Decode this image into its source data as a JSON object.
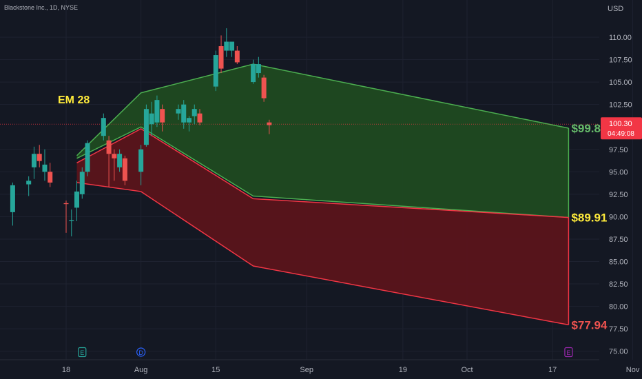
{
  "header": {
    "symbol_title": "Blackstone Inc., 1D, NYSE",
    "currency": "USD"
  },
  "price_tag": {
    "price": "100.30",
    "countdown": "04:49:08",
    "color": "#f23645"
  },
  "colors": {
    "background": "#141823",
    "up": "#26a69a",
    "down": "#ef5350",
    "green_band_fill": "#1f4a21",
    "green_band_line": "#4caf50",
    "red_band_fill": "#5a141b",
    "red_band_line": "#f23645",
    "em_label": "#ffeb3b",
    "upper_label": "#66bb6a",
    "lower_label": "#ef5350",
    "grid": "#1e2230"
  },
  "annotations": {
    "em_label": "EM 28",
    "upper_target": "$99.86",
    "middle_target": "$89.91",
    "lower_target": "$77.94"
  },
  "event_markers": [
    {
      "letter": "E",
      "date": "2022-07-21",
      "icon": "earnings-icon",
      "color": "#26a69a"
    },
    {
      "letter": "D",
      "date": "2022-08-01",
      "icon": "dividend-icon",
      "color": "#2962ff"
    },
    {
      "letter": "E",
      "date": "2022-10-20",
      "icon": "earnings-icon",
      "color": "#9c27b0"
    }
  ],
  "chart_data": {
    "type": "candlestick",
    "title": "",
    "xlabel": "",
    "ylabel": "USD",
    "ylim": [
      75,
      111.5
    ],
    "xlim": [
      "2022-07-08",
      "2022-11-01"
    ],
    "y_ticks": [
      110.0,
      107.5,
      105.0,
      102.5,
      97.5,
      95.0,
      92.5,
      90.0,
      87.5,
      85.0,
      82.5,
      80.0,
      77.5,
      75.0
    ],
    "x_ticks": [
      {
        "label": "18",
        "date": "2022-07-18"
      },
      {
        "label": "Aug",
        "date": "2022-08-01"
      },
      {
        "label": "15",
        "date": "2022-08-15"
      },
      {
        "label": "Sep",
        "date": "2022-09-01"
      },
      {
        "label": "19",
        "date": "2022-09-19"
      },
      {
        "label": "Oct",
        "date": "2022-10-01"
      },
      {
        "label": "17",
        "date": "2022-10-17"
      },
      {
        "label": "Nov",
        "date": "2022-11-01"
      }
    ],
    "last_price": 100.3,
    "candles": [
      {
        "date": "2022-07-08",
        "o": 90.5,
        "h": 93.8,
        "l": 89.0,
        "c": 93.5
      },
      {
        "date": "2022-07-11",
        "o": 93.6,
        "h": 94.5,
        "l": 92.3,
        "c": 94.0
      },
      {
        "date": "2022-07-12",
        "o": 95.5,
        "h": 97.8,
        "l": 94.2,
        "c": 97.0
      },
      {
        "date": "2022-07-13",
        "o": 97.0,
        "h": 98.0,
        "l": 95.5,
        "c": 96.2
      },
      {
        "date": "2022-07-14",
        "o": 95.0,
        "h": 97.5,
        "l": 94.0,
        "c": 95.8
      },
      {
        "date": "2022-07-15",
        "o": 95.0,
        "h": 96.0,
        "l": 93.3,
        "c": 93.8
      },
      {
        "date": "2022-07-18",
        "o": 91.5,
        "h": 91.8,
        "l": 88.2,
        "c": 91.4
      },
      {
        "date": "2022-07-19",
        "o": 89.5,
        "h": 90.8,
        "l": 87.8,
        "c": 89.6
      },
      {
        "date": "2022-07-20",
        "o": 91.0,
        "h": 94.0,
        "l": 89.5,
        "c": 92.8
      },
      {
        "date": "2022-07-21",
        "o": 92.5,
        "h": 95.5,
        "l": 92.0,
        "c": 95.0
      },
      {
        "date": "2022-07-22",
        "o": 95.0,
        "h": 98.5,
        "l": 94.5,
        "c": 98.2
      },
      {
        "date": "2022-07-25",
        "o": 99.0,
        "h": 101.5,
        "l": 98.5,
        "c": 101.0
      },
      {
        "date": "2022-07-26",
        "o": 98.5,
        "h": 99.0,
        "l": 93.3,
        "c": 97.0
      },
      {
        "date": "2022-07-27",
        "o": 97.0,
        "h": 97.5,
        "l": 94.0,
        "c": 96.5
      },
      {
        "date": "2022-07-28",
        "o": 95.5,
        "h": 97.5,
        "l": 95.0,
        "c": 97.0
      },
      {
        "date": "2022-07-29",
        "o": 96.5,
        "h": 96.8,
        "l": 93.5,
        "c": 94.0
      },
      {
        "date": "2022-08-01",
        "o": 95.0,
        "h": 98.0,
        "l": 93.5,
        "c": 97.5
      },
      {
        "date": "2022-08-02",
        "o": 98.0,
        "h": 102.5,
        "l": 97.8,
        "c": 102.0
      },
      {
        "date": "2022-08-03",
        "o": 100.3,
        "h": 102.8,
        "l": 99.0,
        "c": 101.5
      },
      {
        "date": "2022-08-04",
        "o": 100.5,
        "h": 103.5,
        "l": 100.0,
        "c": 103.0
      },
      {
        "date": "2022-08-05",
        "o": 102.0,
        "h": 102.5,
        "l": 99.5,
        "c": 100.5
      },
      {
        "date": "2022-08-08",
        "o": 101.5,
        "h": 102.5,
        "l": 100.8,
        "c": 102.0
      },
      {
        "date": "2022-08-09",
        "o": 100.5,
        "h": 103.0,
        "l": 99.8,
        "c": 102.5
      },
      {
        "date": "2022-08-10",
        "o": 100.5,
        "h": 101.2,
        "l": 99.5,
        "c": 101.0
      },
      {
        "date": "2022-08-11",
        "o": 101.2,
        "h": 102.5,
        "l": 100.3,
        "c": 102.0
      },
      {
        "date": "2022-08-12",
        "o": 101.5,
        "h": 102.0,
        "l": 100.2,
        "c": 100.5
      },
      {
        "date": "2022-08-15",
        "o": 104.5,
        "h": 108.5,
        "l": 104.0,
        "c": 108.0
      },
      {
        "date": "2022-08-16",
        "o": 109.0,
        "h": 110.2,
        "l": 106.0,
        "c": 106.5
      },
      {
        "date": "2022-08-17",
        "o": 108.5,
        "h": 111.0,
        "l": 107.8,
        "c": 109.5
      },
      {
        "date": "2022-08-18",
        "o": 108.5,
        "h": 109.5,
        "l": 107.8,
        "c": 109.5
      },
      {
        "date": "2022-08-19",
        "o": 108.5,
        "h": 109.0,
        "l": 107.0,
        "c": 107.2
      },
      {
        "date": "2022-08-22",
        "o": 105.0,
        "h": 107.5,
        "l": 104.8,
        "c": 107.0
      },
      {
        "date": "2022-08-23",
        "o": 106.0,
        "h": 107.8,
        "l": 105.5,
        "c": 107.0
      },
      {
        "date": "2022-08-24",
        "o": 105.5,
        "h": 105.8,
        "l": 102.8,
        "c": 103.2
      },
      {
        "date": "2022-08-25",
        "o": 100.5,
        "h": 100.8,
        "l": 99.2,
        "c": 100.2
      }
    ],
    "bands": [
      {
        "name": "",
        "fill": "#1f4a21",
        "upper": [
          {
            "date": "2022-07-20",
            "y": 96.8
          },
          {
            "date": "2022-08-01",
            "y": 103.8
          },
          {
            "date": "2022-08-22",
            "y": 107.0
          },
          {
            "date": "2022-10-20",
            "y": 99.86
          }
        ],
        "lower": [
          {
            "date": "2022-07-20",
            "y": 96.5
          },
          {
            "date": "2022-08-01",
            "y": 100.0
          },
          {
            "date": "2022-08-22",
            "y": 92.3
          },
          {
            "date": "2022-10-20",
            "y": 89.91
          }
        ]
      },
      {
        "name": "",
        "fill": "#5a141b",
        "upper": [
          {
            "date": "2022-07-20",
            "y": 96.0
          },
          {
            "date": "2022-08-01",
            "y": 99.8
          },
          {
            "date": "2022-08-22",
            "y": 92.0
          },
          {
            "date": "2022-10-20",
            "y": 89.91
          }
        ],
        "lower": [
          {
            "date": "2022-07-20",
            "y": 93.8
          },
          {
            "date": "2022-08-01",
            "y": 92.8
          },
          {
            "date": "2022-08-22",
            "y": 84.5
          },
          {
            "date": "2022-10-20",
            "y": 77.94
          }
        ]
      }
    ]
  }
}
